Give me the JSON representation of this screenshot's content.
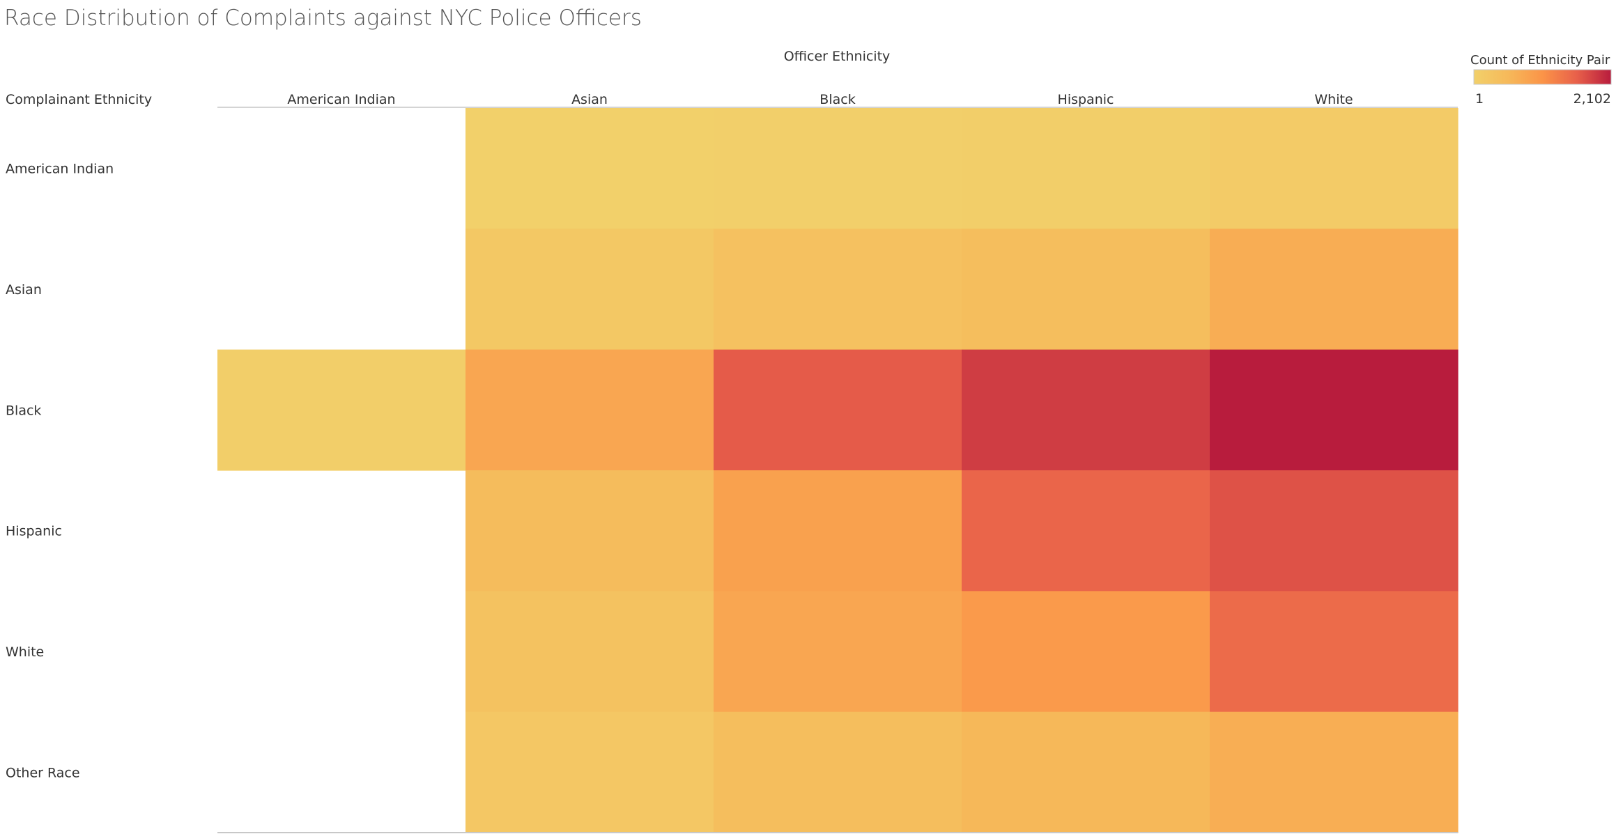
{
  "chart_data": {
    "type": "heatmap",
    "title": "Race Distribution of Complaints against NYC Police Officers",
    "column_header": "Officer Ethnicity",
    "row_header": "Complainant Ethnicity",
    "columns": [
      "American Indian",
      "Asian",
      "Black",
      "Hispanic",
      "White"
    ],
    "rows": [
      "American Indian",
      "Asian",
      "Black",
      "Hispanic",
      "White",
      "Other Race"
    ],
    "values": [
      [
        null,
        2,
        3,
        5,
        12
      ],
      [
        null,
        20,
        45,
        60,
        150
      ],
      [
        5,
        190,
        1000,
        1450,
        2102
      ],
      [
        null,
        70,
        230,
        870,
        1120
      ],
      [
        null,
        40,
        190,
        290,
        780
      ],
      [
        null,
        22,
        60,
        95,
        145
      ]
    ],
    "color_legend": {
      "title": "Count of Ethnicity Pair",
      "min": 1,
      "max": 2102,
      "min_label": "1",
      "max_label": "2,102",
      "colors": [
        "#f2d06a",
        "#f6b95a",
        "#fb9448",
        "#e8604a",
        "#b81c3d"
      ]
    }
  }
}
